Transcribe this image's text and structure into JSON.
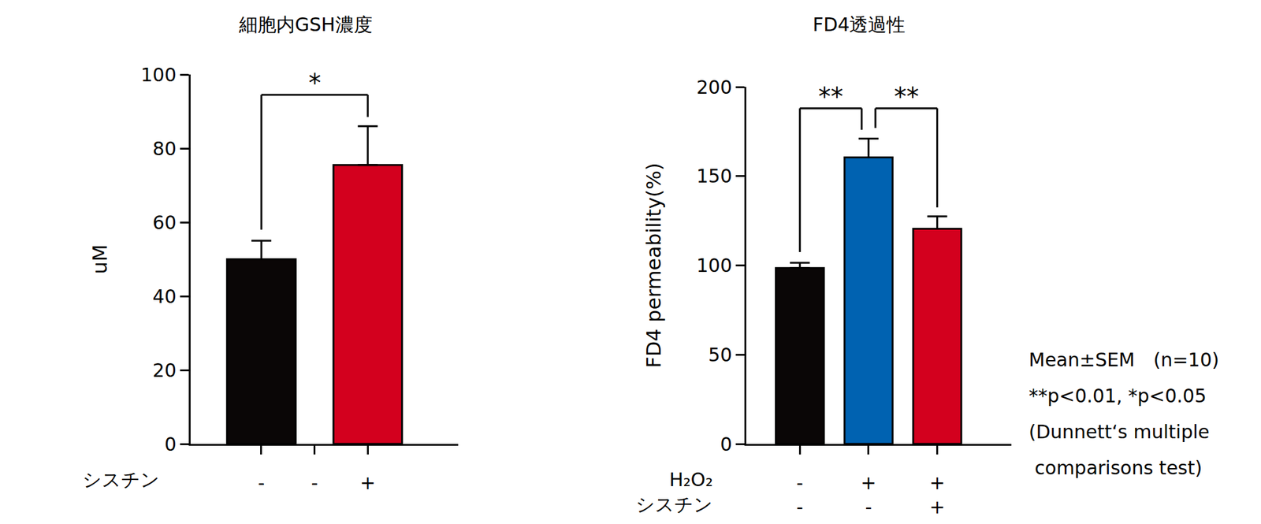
{
  "chart_data": [
    {
      "type": "bar",
      "title": "細胞内GSH濃度",
      "y_label": "uM",
      "x_rows": [
        {
          "label": "シスチン",
          "categories": [
            "-",
            "-",
            "+"
          ]
        }
      ],
      "values": [
        50,
        null,
        75.5
      ],
      "errors": [
        5,
        null,
        10.5
      ],
      "colors": [
        "#0a0606",
        null,
        "#d3001e"
      ],
      "ylim": [
        0,
        100
      ],
      "yticks": [
        0,
        20,
        40,
        60,
        80,
        100
      ],
      "grid": false,
      "comparisons": [
        {
          "groups": [
            0,
            2
          ],
          "label": "*"
        }
      ]
    },
    {
      "type": "bar",
      "title": "FD4透過性",
      "y_label": "FD4 permeability(%)",
      "x_rows": [
        {
          "label": "H₂O₂",
          "categories": [
            "-",
            "+",
            "+"
          ]
        },
        {
          "label": "シスチン",
          "categories": [
            "-",
            "-",
            "+"
          ]
        }
      ],
      "values": [
        98.5,
        160.5,
        120.5
      ],
      "errors": [
        3,
        10.5,
        7
      ],
      "colors": [
        "#0a0606",
        "#0062b1",
        "#d3001e"
      ],
      "ylim": [
        0,
        200
      ],
      "yticks": [
        0,
        50,
        100,
        150,
        200
      ],
      "grid": false,
      "comparisons": [
        {
          "groups": [
            0,
            1
          ],
          "label": "**"
        },
        {
          "groups": [
            1,
            2
          ],
          "label": "**"
        }
      ]
    }
  ],
  "note": [
    "Mean±SEM　(n=10)",
    "**p<0.01, *p<0.05",
    "(Dunnett‘s multiple",
    " comparisons test)"
  ]
}
